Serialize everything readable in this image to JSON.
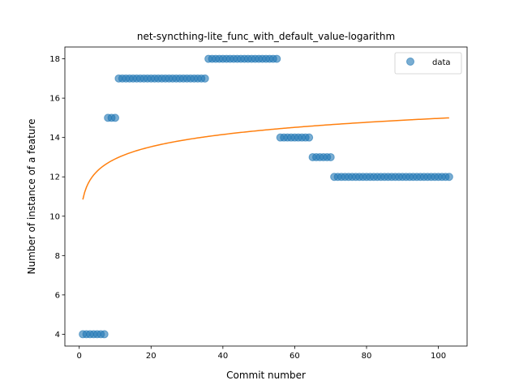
{
  "chart_data": {
    "type": "scatter",
    "title": "net-syncthing-lite_func_with_default_value-logarithm",
    "xlabel": "Commit number",
    "ylabel": "Number of instance of a feature",
    "xlim": [
      -4,
      108
    ],
    "ylim": [
      3.4,
      18.6
    ],
    "xticks": [
      0,
      20,
      40,
      60,
      80,
      100
    ],
    "yticks": [
      4,
      6,
      8,
      10,
      12,
      14,
      16,
      18
    ],
    "legend": {
      "placement": "top-right",
      "entries": [
        "data"
      ]
    },
    "colors": {
      "data": "#1f77b4",
      "fit": "#ff7f0e"
    },
    "series": [
      {
        "name": "data",
        "kind": "scatter",
        "segments": [
          {
            "x_start": 1,
            "x_end": 7,
            "y": 4
          },
          {
            "x_start": 8,
            "x_end": 10,
            "y": 15
          },
          {
            "x_start": 11,
            "x_end": 35,
            "y": 17
          },
          {
            "x_start": 36,
            "x_end": 55,
            "y": 18
          },
          {
            "x_start": 56,
            "x_end": 64,
            "y": 14
          },
          {
            "x_start": 65,
            "x_end": 70,
            "y": 13
          },
          {
            "x_start": 71,
            "x_end": 103,
            "y": 12
          }
        ]
      },
      {
        "kind": "line",
        "x_start": 1,
        "x_end": 103,
        "fit": {
          "a": 10.85,
          "b": 0.895
        }
      }
    ]
  }
}
